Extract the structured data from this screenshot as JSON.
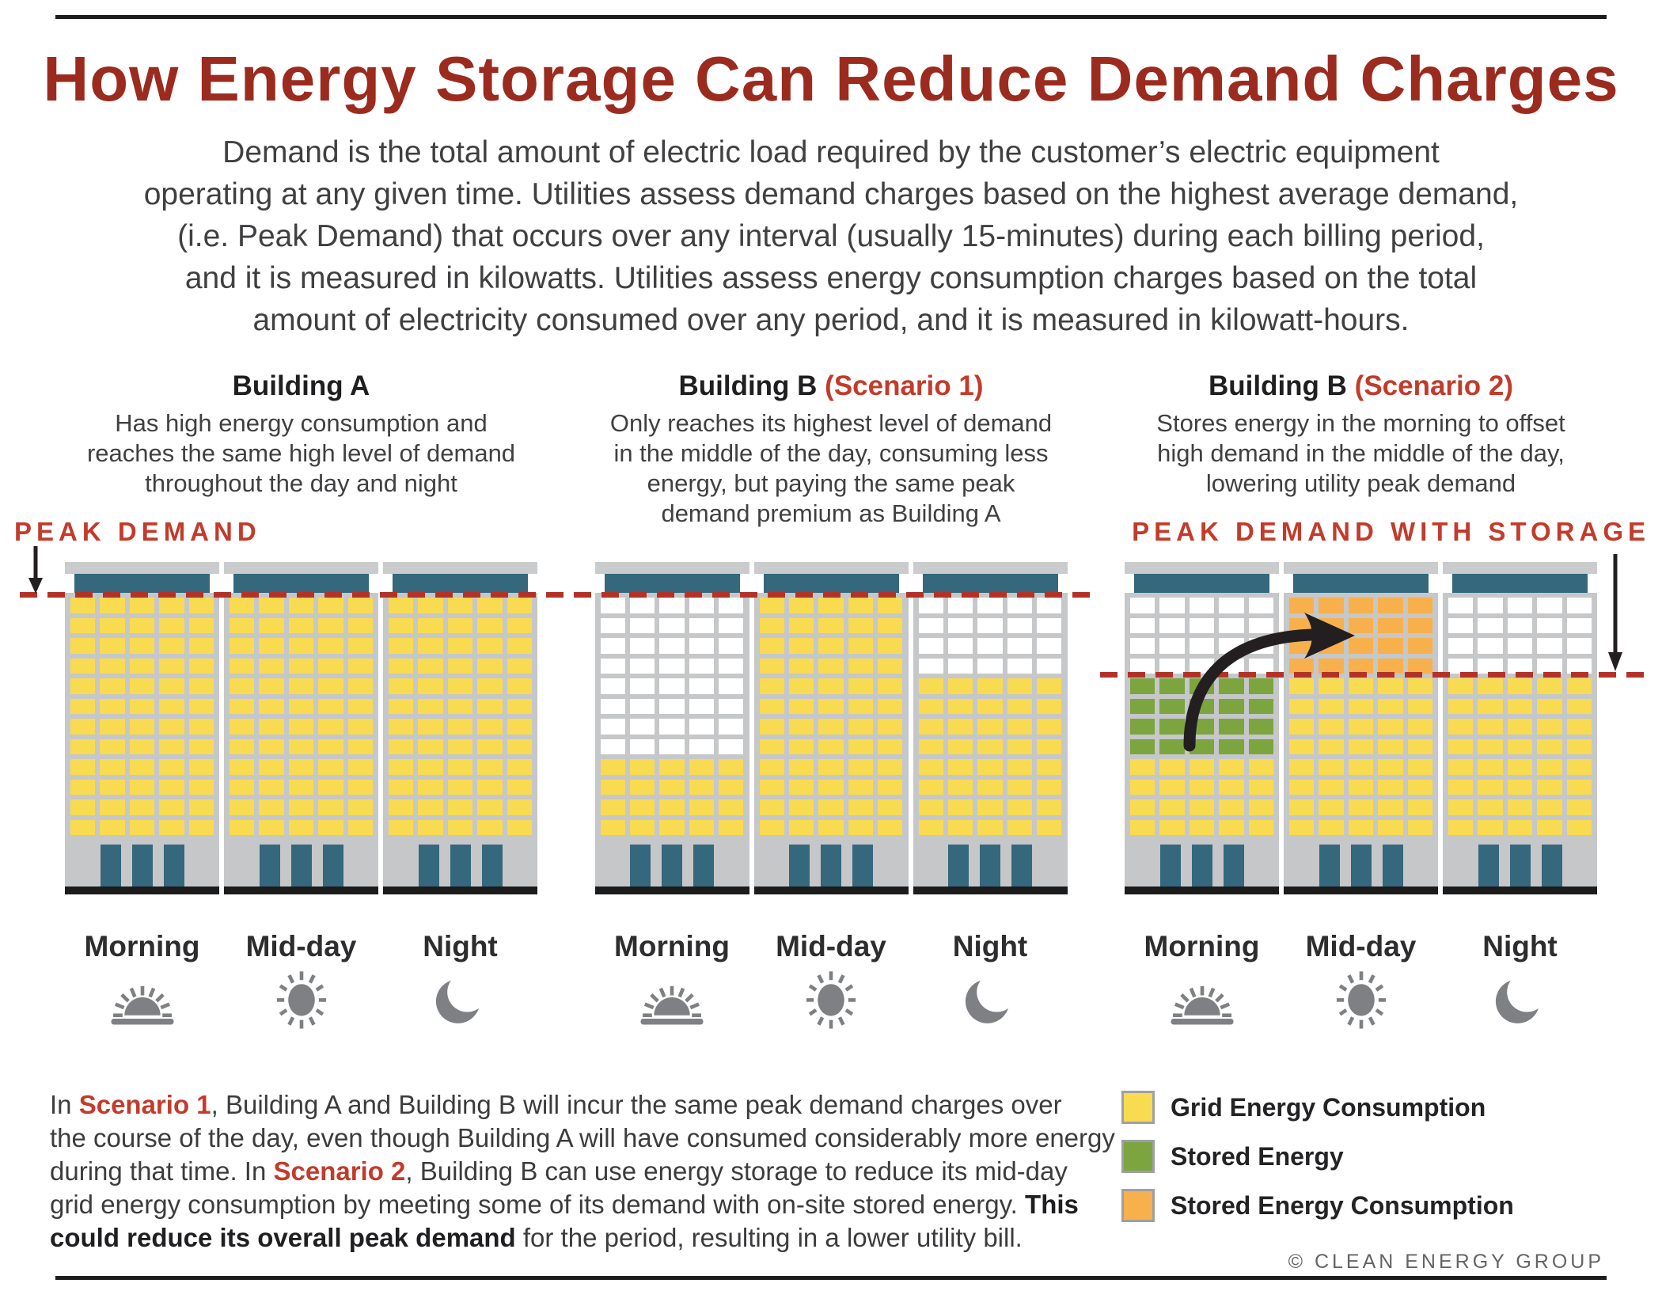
{
  "colors": {
    "yellow": "#F9DB51",
    "green": "#7CA53F",
    "orange": "#F8B04C",
    "white": "#FFFFFF",
    "teal": "#35677D",
    "facade": "#C5C7C9",
    "cap": "#C9CBCD",
    "dash_red": "#B23228",
    "accent_red": "#C23B2B",
    "title_red": "#9A2B1E",
    "icon_gray": "#7E8083",
    "arrow_black": "#231F20"
  },
  "title": "How Energy Storage Can Reduce Demand Charges",
  "intro": "Demand is the total amount of electric load required by the customer’s electric equipment\noperating at any given time. Utilities assess demand charges based on the highest average demand,\n(i.e. Peak Demand) that occurs over any interval (usually 15-minutes) during each billing period,\nand it is measured in kilowatts. Utilities assess energy consumption charges based on the total\namount of electricity consumed over any period, and it is measured in kilowatt-hours.",
  "peak_demand_label": "PEAK DEMAND",
  "peak_demand_storage_label": "PEAK DEMAND WITH STORAGE",
  "groups": [
    {
      "id": "building-a",
      "name": "Building A",
      "scenario": "",
      "description": "Has high energy consumption and\nreaches the same high level of demand\nthroughout the day and night",
      "buildings": [
        {
          "label": "Morning",
          "icon": "sunrise-icon",
          "windows": [
            {
              "color": "yellow",
              "rows": 12
            }
          ]
        },
        {
          "label": "Mid-day",
          "icon": "sun-icon",
          "windows": [
            {
              "color": "yellow",
              "rows": 12
            }
          ]
        },
        {
          "label": "Night",
          "icon": "moon-icon",
          "windows": [
            {
              "color": "yellow",
              "rows": 12
            }
          ]
        }
      ]
    },
    {
      "id": "building-b1",
      "name": "Building B",
      "scenario": "(Scenario 1)",
      "description": "Only reaches its highest level of demand\nin the middle of the day, consuming less\nenergy, but paying the same peak\ndemand premium as Building A",
      "buildings": [
        {
          "label": "Morning",
          "icon": "sunrise-icon",
          "windows": [
            {
              "color": "white",
              "rows": 8
            },
            {
              "color": "yellow",
              "rows": 4
            }
          ]
        },
        {
          "label": "Mid-day",
          "icon": "sun-icon",
          "windows": [
            {
              "color": "yellow",
              "rows": 12
            }
          ]
        },
        {
          "label": "Night",
          "icon": "moon-icon",
          "windows": [
            {
              "color": "white",
              "rows": 4
            },
            {
              "color": "yellow",
              "rows": 8
            }
          ]
        }
      ]
    },
    {
      "id": "building-b2",
      "name": "Building B",
      "scenario": "(Scenario 2)",
      "description": "Stores energy in the morning to offset\nhigh demand in the middle of the day,\nlowering utility peak demand",
      "buildings": [
        {
          "label": "Morning",
          "icon": "sunrise-icon",
          "windows": [
            {
              "color": "white",
              "rows": 4
            },
            {
              "color": "green",
              "rows": 4
            },
            {
              "color": "yellow",
              "rows": 4
            }
          ]
        },
        {
          "label": "Mid-day",
          "icon": "sun-icon",
          "windows": [
            {
              "color": "orange",
              "rows": 4
            },
            {
              "color": "yellow",
              "rows": 8
            }
          ]
        },
        {
          "label": "Night",
          "icon": "moon-icon",
          "windows": [
            {
              "color": "white",
              "rows": 4
            },
            {
              "color": "yellow",
              "rows": 8
            }
          ]
        }
      ]
    }
  ],
  "legend": {
    "items": [
      {
        "label": "Grid Energy Consumption",
        "color": "yellow"
      },
      {
        "label": "Stored Energy",
        "color": "green"
      },
      {
        "label": "Stored Energy Consumption",
        "color": "orange"
      }
    ]
  },
  "summary": {
    "lines": [
      [
        {
          "t": "In "
        },
        {
          "t": "Scenario 1",
          "red": true
        },
        {
          "t": ", Building A and Building B will incur the same peak demand charges over"
        }
      ],
      [
        {
          "t": "the course of the day, even though Building A will have consumed considerably more energy"
        }
      ],
      [
        {
          "t": "during that time. In "
        },
        {
          "t": "Scenario 2",
          "red": true
        },
        {
          "t": ", Building B can use energy storage to reduce its mid-day"
        }
      ],
      [
        {
          "t": "grid energy consumption by meeting some of its demand with on-site stored energy. "
        },
        {
          "t": "This",
          "b": true
        }
      ],
      [
        {
          "t": "could reduce its overall peak demand",
          "b": true
        },
        {
          "t": " for the period, resulting in a lower utility bill."
        }
      ]
    ]
  },
  "copyright": "© CLEAN ENERGY GROUP"
}
